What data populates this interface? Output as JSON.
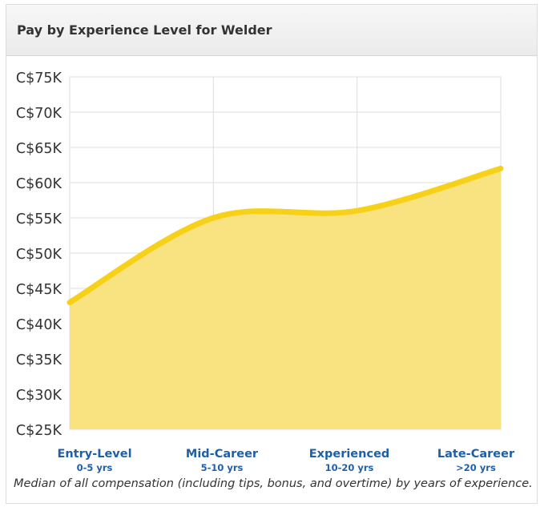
{
  "header": {
    "title": "Pay by Experience Level for Welder"
  },
  "caption": "Median of all compensation (including tips, bonus, and overtime) by years of experience.",
  "colors": {
    "line": "#f7d117",
    "fill": "#f9e27a",
    "category_label": "#1f5fa8",
    "grid": "#dddddd",
    "tick_label": "#333333"
  },
  "chart_data": {
    "type": "area",
    "categories": [
      {
        "label": "Entry-Level",
        "sublabel": "0-5 yrs"
      },
      {
        "label": "Mid-Career",
        "sublabel": "5-10 yrs"
      },
      {
        "label": "Experienced",
        "sublabel": "10-20 yrs"
      },
      {
        "label": "Late-Career",
        "sublabel": ">20 yrs"
      }
    ],
    "values": [
      43000,
      55000,
      56000,
      62000
    ],
    "ylim": [
      25000,
      75000
    ],
    "yticks": [
      {
        "value": 75000,
        "label": "C$75K"
      },
      {
        "value": 70000,
        "label": "C$70K"
      },
      {
        "value": 65000,
        "label": "C$65K"
      },
      {
        "value": 60000,
        "label": "C$60K"
      },
      {
        "value": 55000,
        "label": "C$55K"
      },
      {
        "value": 50000,
        "label": "C$50K"
      },
      {
        "value": 45000,
        "label": "C$45K"
      },
      {
        "value": 40000,
        "label": "C$40K"
      },
      {
        "value": 35000,
        "label": "C$35K"
      },
      {
        "value": 30000,
        "label": "C$30K"
      },
      {
        "value": 25000,
        "label": "C$25K"
      }
    ],
    "grid": true,
    "smooth": true
  }
}
